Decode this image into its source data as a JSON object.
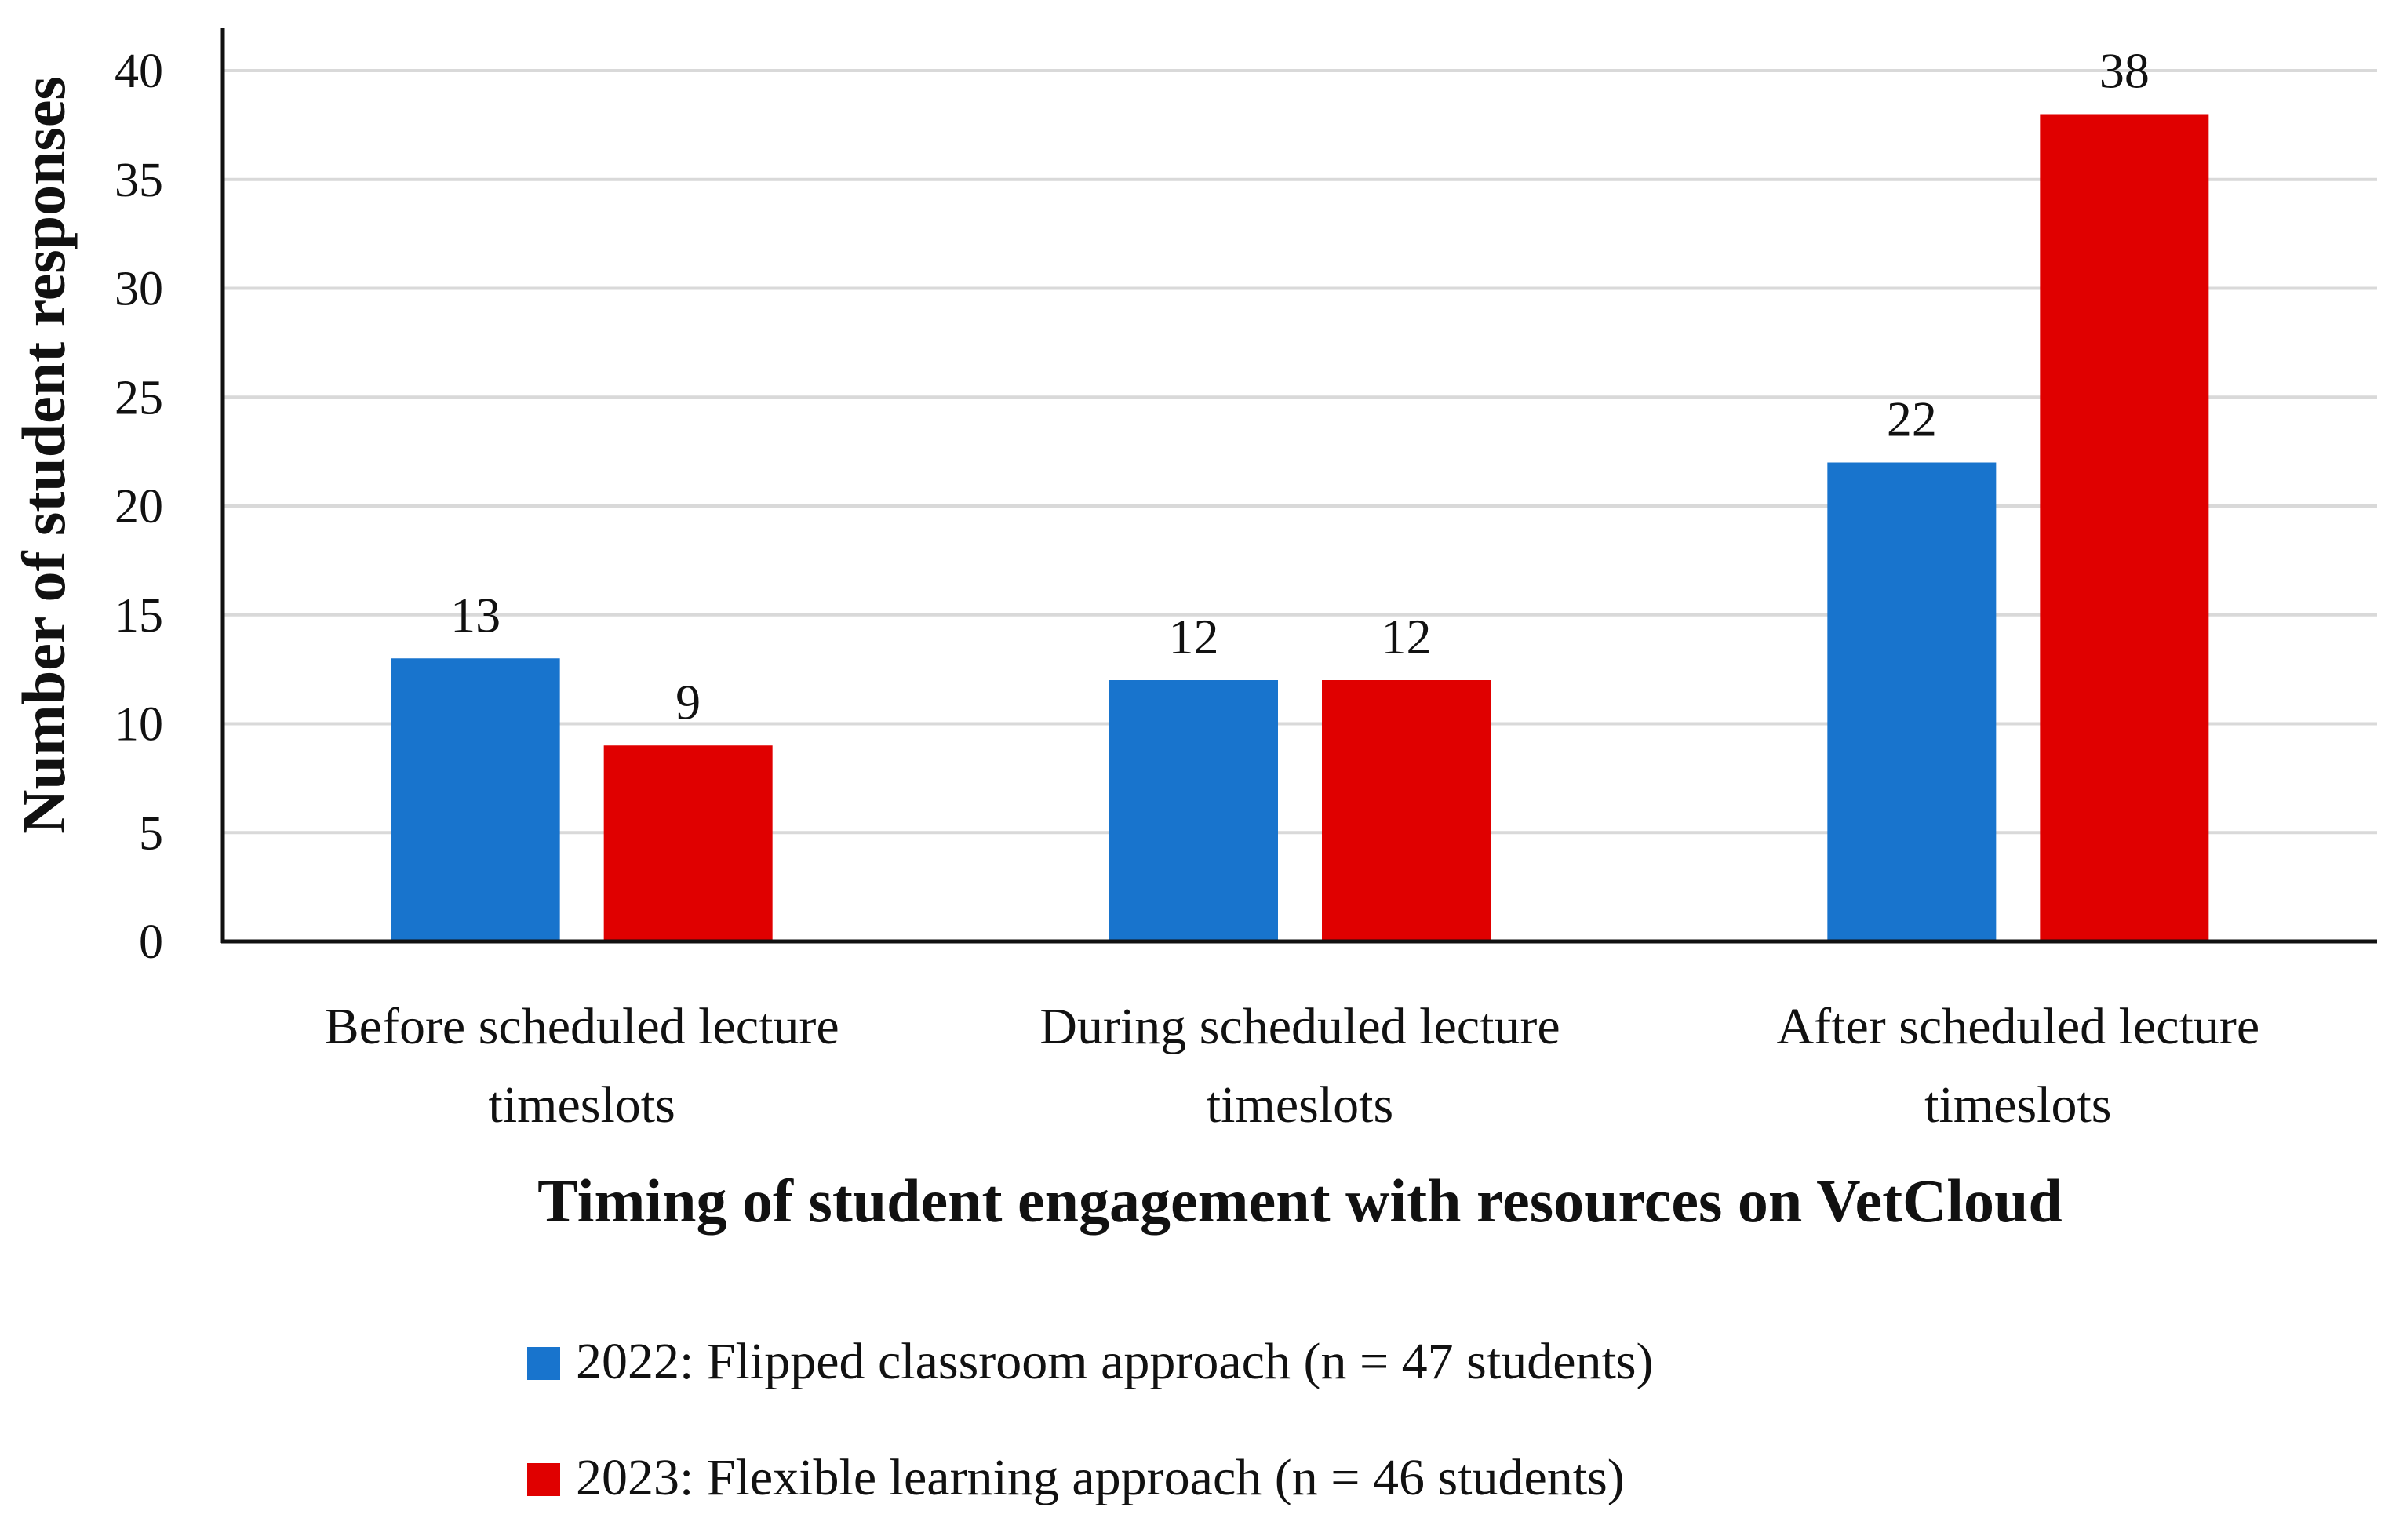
{
  "chart_data": {
    "type": "bar",
    "categories": [
      [
        "Before scheduled lecture",
        "timeslots"
      ],
      [
        "During scheduled lecture",
        "timeslots"
      ],
      [
        "After scheduled lecture",
        "timeslots"
      ]
    ],
    "series": [
      {
        "name": "2022: Flipped classroom approach (n = 47 students)",
        "color": "#1874CD",
        "values": [
          13,
          12,
          22
        ]
      },
      {
        "name": "2023: Flexible learning approach (n = 46 students)",
        "color": "#E00000",
        "values": [
          9,
          12,
          38
        ]
      }
    ],
    "title": "",
    "xlabel": "Timing of student engagement with resources on VetCloud",
    "ylabel": "Number of student responses",
    "ylim": [
      0,
      40
    ],
    "yticks": [
      0,
      5,
      10,
      15,
      20,
      25,
      30,
      35,
      40
    ],
    "grid": true,
    "legend_position": "bottom"
  }
}
